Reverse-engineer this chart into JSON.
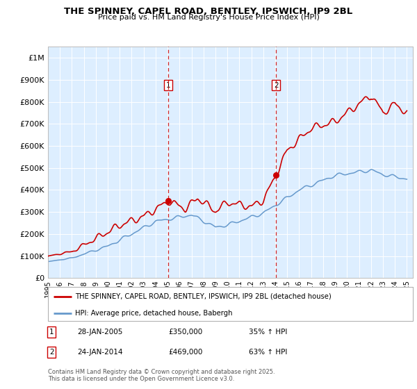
{
  "title1": "THE SPINNEY, CAPEL ROAD, BENTLEY, IPSWICH, IP9 2BL",
  "title2": "Price paid vs. HM Land Registry's House Price Index (HPI)",
  "ylabel_ticks": [
    "£0",
    "£100K",
    "£200K",
    "£300K",
    "£400K",
    "£500K",
    "£600K",
    "£700K",
    "£800K",
    "£900K",
    "£1M"
  ],
  "ytick_values": [
    0,
    100000,
    200000,
    300000,
    400000,
    500000,
    600000,
    700000,
    800000,
    900000,
    1000000
  ],
  "x_start_year": 1995,
  "x_end_year": 2025,
  "marker1_date": 2005.07,
  "marker1_label": "1",
  "marker1_price": 350000,
  "marker1_text": "28-JAN-2005",
  "marker1_value": "£350,000",
  "marker1_hpi": "35% ↑ HPI",
  "marker2_date": 2014.07,
  "marker2_label": "2",
  "marker2_price": 469000,
  "marker2_text": "24-JAN-2014",
  "marker2_value": "£469,000",
  "marker2_hpi": "63% ↑ HPI",
  "legend_line1": "THE SPINNEY, CAPEL ROAD, BENTLEY, IPSWICH, IP9 2BL (detached house)",
  "legend_line2": "HPI: Average price, detached house, Babergh",
  "footnote": "Contains HM Land Registry data © Crown copyright and database right 2025.\nThis data is licensed under the Open Government Licence v3.0.",
  "red_color": "#cc0000",
  "blue_color": "#6699cc",
  "bg_color": "#ddeeff",
  "marker_box_color": "#cc0000"
}
